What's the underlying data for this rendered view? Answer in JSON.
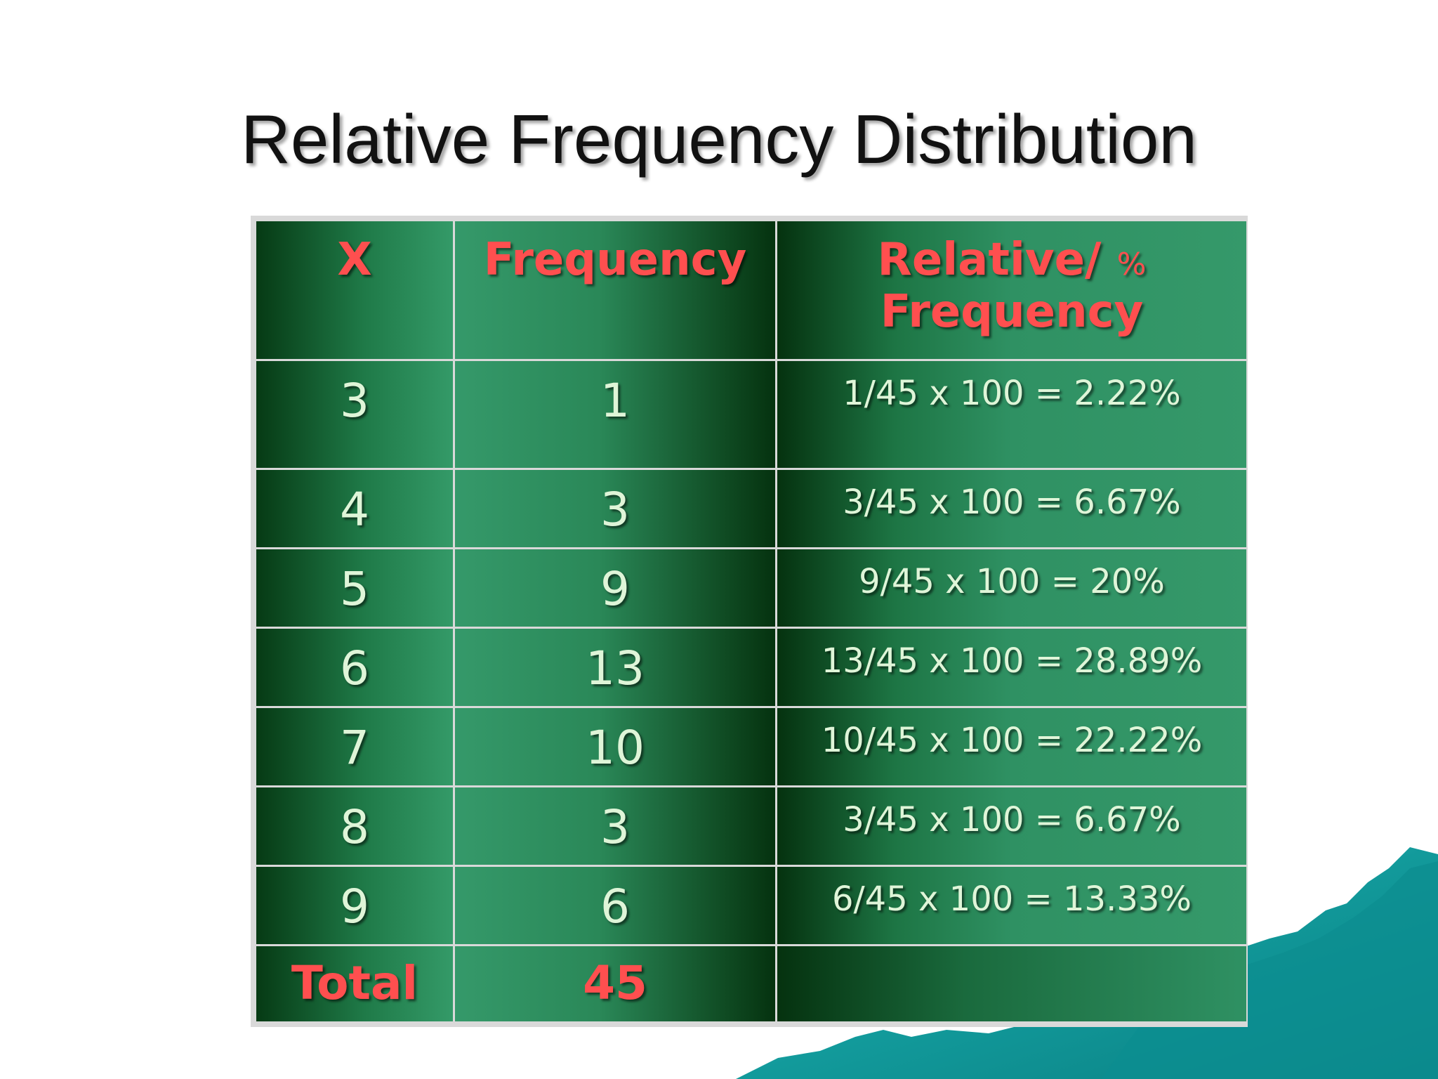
{
  "slide": {
    "title": "Relative Frequency Distribution"
  },
  "table": {
    "headers": {
      "x": "X",
      "frequency": "Frequency",
      "relative_line1": "Relative/",
      "relative_pct": "%",
      "relative_line2": "Frequency"
    },
    "rows": [
      {
        "x": "3",
        "frequency": "1",
        "relative": "1/45 x 100 = 2.22%"
      },
      {
        "x": "4",
        "frequency": "3",
        "relative": "3/45 x 100 = 6.67%"
      },
      {
        "x": "5",
        "frequency": "9",
        "relative": "9/45 x 100 = 20%"
      },
      {
        "x": "6",
        "frequency": "13",
        "relative": "13/45 x 100 = 28.89%"
      },
      {
        "x": "7",
        "frequency": "10",
        "relative": "10/45 x 100 = 22.22%"
      },
      {
        "x": "8",
        "frequency": "3",
        "relative": "3/45 x 100 = 6.67%"
      },
      {
        "x": "9",
        "frequency": "6",
        "relative": "6/45 x 100 = 13.33%"
      }
    ],
    "total": {
      "label": "Total",
      "frequency": "45",
      "relative": ""
    }
  },
  "colors": {
    "header_text": "#ff4f4f",
    "cell_text": "#dff5d8",
    "dark_green": "#05320f",
    "light_green": "#35996a",
    "mountain_teal": "#0e9a9a"
  }
}
